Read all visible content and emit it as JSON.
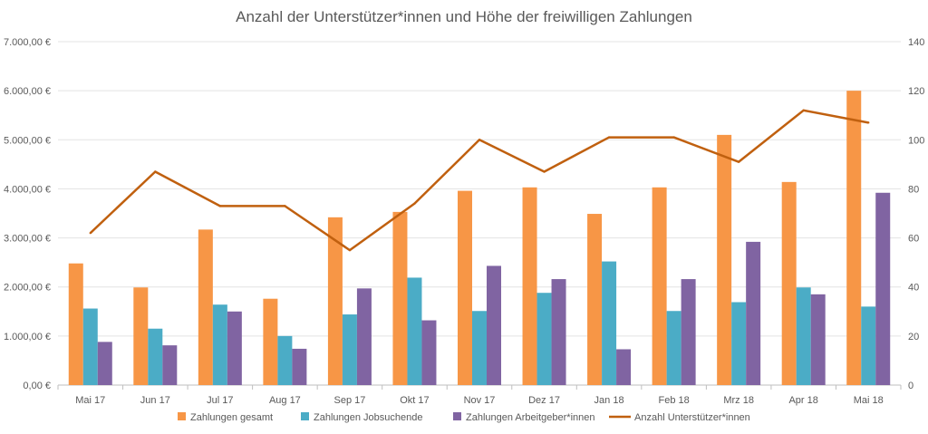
{
  "chart_data": {
    "type": "bar",
    "title": "Anzahl der Unterstützer*innen und Höhe der freiwilligen Zahlungen",
    "categories": [
      "Mai 17",
      "Jun 17",
      "Jul 17",
      "Aug 17",
      "Sep 17",
      "Okt 17",
      "Nov 17",
      "Dez 17",
      "Jan 18",
      "Feb 18",
      "Mrz 18",
      "Apr 18",
      "Mai 18"
    ],
    "series": [
      {
        "name": "Zahlungen gesamt",
        "type": "bar",
        "axis": "left",
        "color": "#F79646",
        "values": [
          2480,
          1990,
          3170,
          1760,
          3420,
          3530,
          3960,
          4030,
          3490,
          4030,
          5100,
          4140,
          6000
        ]
      },
      {
        "name": "Zahlungen Jobsuchende",
        "type": "bar",
        "axis": "left",
        "color": "#4BACC6",
        "values": [
          1560,
          1150,
          1640,
          1000,
          1440,
          2190,
          1510,
          1880,
          2520,
          1510,
          1690,
          1990,
          1600
        ]
      },
      {
        "name": "Zahlungen Arbeitgeber*innen",
        "type": "bar",
        "axis": "left",
        "color": "#8064A2",
        "values": [
          880,
          810,
          1500,
          740,
          1970,
          1320,
          2430,
          2160,
          730,
          2160,
          2920,
          1850,
          3920
        ]
      },
      {
        "name": "Anzahl Unterstützer*innen",
        "type": "line",
        "axis": "right",
        "color": "#C0600F",
        "values": [
          62,
          87,
          73,
          73,
          55,
          74,
          100,
          87,
          101,
          101,
          91,
          112,
          107
        ]
      }
    ],
    "y_left": {
      "ylim": [
        0,
        7000
      ],
      "ticks": [
        "0,00 €",
        "1.000,00 €",
        "2.000,00 €",
        "3.000,00 €",
        "4.000,00 €",
        "5.000,00 €",
        "6.000,00 €",
        "7.000,00 €"
      ]
    },
    "y_right": {
      "ylim": [
        0,
        140
      ],
      "ticks": [
        "0",
        "20",
        "40",
        "60",
        "80",
        "100",
        "120",
        "140"
      ]
    },
    "grid": true,
    "legend_position": "bottom"
  }
}
